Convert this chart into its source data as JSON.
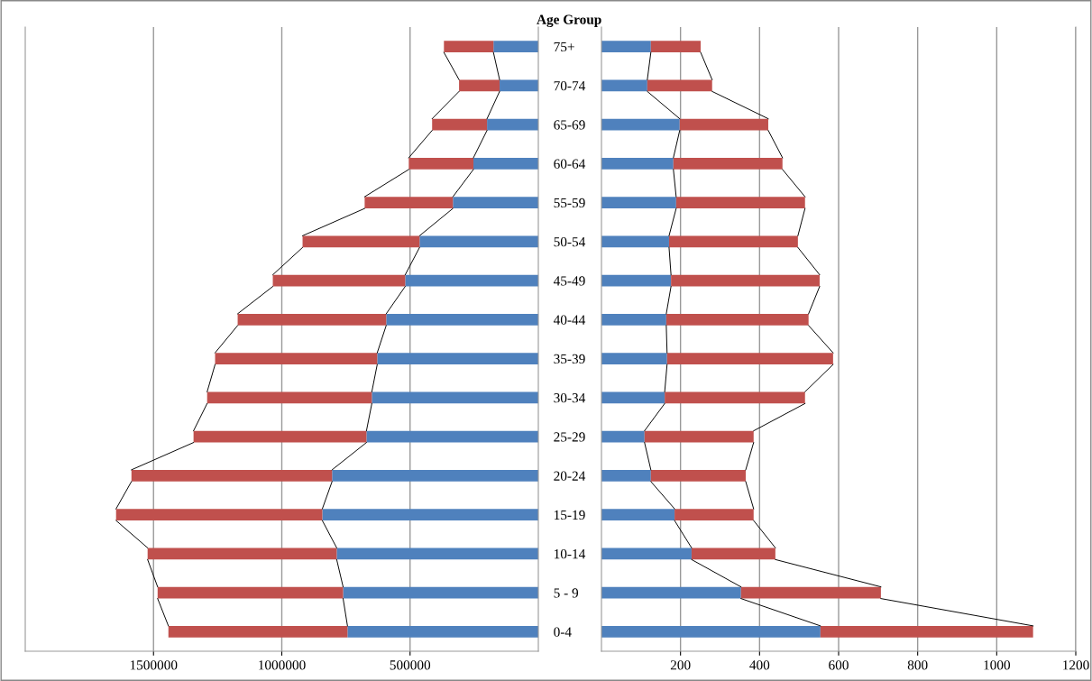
{
  "chart_data": [
    {
      "type": "bar",
      "orientation": "horizontal",
      "stacked": true,
      "title": "Age Group",
      "grid": "x",
      "legend": false,
      "categories": [
        "75+",
        "70-74",
        "65-69",
        "60-64",
        "55-59",
        "50-54",
        "45-49",
        "40-44",
        "35-39",
        "30-34",
        "25-29",
        "20-24",
        "15-19",
        "10-14",
        "5 - 9",
        "0-4"
      ],
      "xlim": [
        2000000,
        0
      ],
      "xticks": [
        1500000,
        1000000,
        500000
      ],
      "series": [
        {
          "color": "#4f81bd",
          "values": [
            175000,
            151000,
            200000,
            253000,
            333000,
            463000,
            519000,
            593000,
            628000,
            649000,
            670000,
            804000,
            842000,
            786000,
            761000,
            744000
          ]
        },
        {
          "color": "#c0504d",
          "values": [
            193000,
            158000,
            214000,
            252000,
            344000,
            456000,
            516000,
            579000,
            632000,
            642000,
            674000,
            782000,
            804000,
            737000,
            723000,
            698000
          ]
        }
      ]
    },
    {
      "type": "bar",
      "orientation": "horizontal",
      "stacked": true,
      "grid": "x",
      "legend": false,
      "tick_labels": "x",
      "categories": [
        null,
        null,
        null,
        null,
        null,
        null,
        null,
        null,
        null,
        null,
        null,
        null,
        null,
        null,
        null,
        null
      ],
      "xlim": [
        0,
        1200
      ],
      "xticks": [
        200,
        400,
        600,
        800,
        1000,
        1200
      ],
      "series": [
        {
          "color": "#4f81bd",
          "values": [
            125,
            116,
            198,
            182,
            189,
            171,
            176,
            164,
            166,
            160,
            109,
            125,
            185,
            228,
            353,
            554
          ]
        },
        {
          "color": "#c0504d",
          "values": [
            126,
            164,
            224,
            276,
            326,
            326,
            376,
            360,
            420,
            355,
            276,
            240,
            200,
            212,
            354,
            538
          ]
        }
      ]
    }
  ]
}
